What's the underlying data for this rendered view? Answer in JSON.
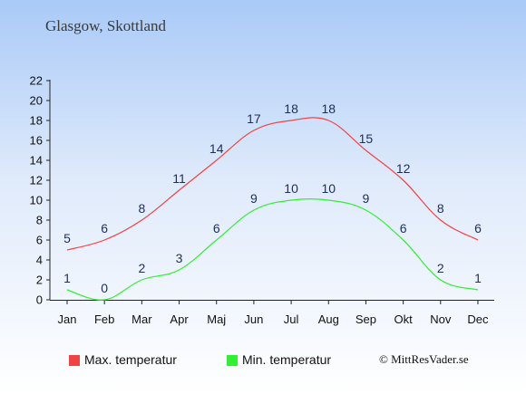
{
  "page": {
    "title": "Glasgow, Skottland"
  },
  "legend": {
    "max_label": "Max. temperatur",
    "min_label": "Min. temperatur",
    "max_color": "#ee4444",
    "min_color": "#33ee33"
  },
  "copyright": "© MittResVader.se",
  "chart_data": {
    "type": "line",
    "title": "Glasgow, Skottland",
    "categories": [
      "Jan",
      "Feb",
      "Mar",
      "Apr",
      "Maj",
      "Jun",
      "Jul",
      "Aug",
      "Sep",
      "Okt",
      "Nov",
      "Dec"
    ],
    "series": [
      {
        "name": "Max. temperatur",
        "color": "#ee4444",
        "values": [
          5,
          6,
          8,
          11,
          14,
          17,
          18,
          18,
          15,
          12,
          8,
          6
        ]
      },
      {
        "name": "Min. temperatur",
        "color": "#33ee33",
        "values": [
          1,
          0,
          2,
          3,
          6,
          9,
          10,
          10,
          9,
          6,
          2,
          1
        ]
      }
    ],
    "ylim": [
      0,
      22
    ],
    "yticks": [
      0,
      2,
      4,
      6,
      8,
      10,
      12,
      14,
      16,
      18,
      20,
      22
    ],
    "xlabel": "",
    "ylabel": "",
    "grid": false,
    "legend_position": "bottom"
  }
}
